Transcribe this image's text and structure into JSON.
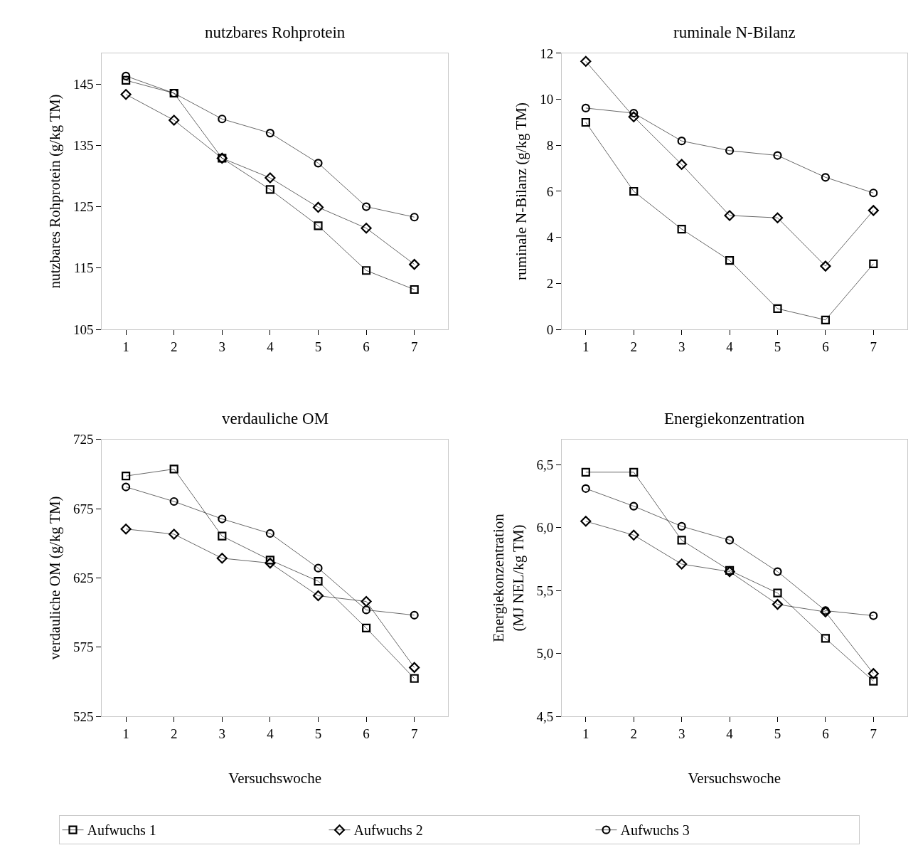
{
  "chart_data": [
    {
      "type": "line",
      "title": "nutzbares Rohprotein",
      "ylabel": "nutzbares Rohprotein (g/kg TM)",
      "categories": [
        "1",
        "2",
        "3",
        "4",
        "5",
        "6",
        "7"
      ],
      "ylim": [
        105,
        150
      ],
      "yticks": [
        105,
        115,
        125,
        135,
        145
      ],
      "grid": false,
      "legend": "bottom",
      "series": [
        {
          "name": "Aufwuchs 1",
          "color": "#000000",
          "marker": "square",
          "values": [
            145.6,
            143.5,
            132.9,
            127.8,
            121.9,
            114.6,
            111.5
          ]
        },
        {
          "name": "Aufwuchs 2",
          "color": "#000000",
          "marker": "diamond",
          "values": [
            143.3,
            139.1,
            132.9,
            129.7,
            124.9,
            121.5,
            115.6
          ]
        },
        {
          "name": "Aufwuchs 3",
          "color": "#000000",
          "marker": "circle",
          "values": [
            146.3,
            143.5,
            139.3,
            137.0,
            132.1,
            125.0,
            123.3
          ]
        }
      ]
    },
    {
      "type": "line",
      "title": "ruminale N-Bilanz",
      "ylabel": "ruminale N-Bilanz (g/kg TM)",
      "categories": [
        "1",
        "2",
        "3",
        "4",
        "5",
        "6",
        "7"
      ],
      "ylim": [
        0,
        12
      ],
      "yticks": [
        0,
        2,
        4,
        6,
        8,
        10,
        12
      ],
      "grid": false,
      "series": [
        {
          "color": "#000000",
          "marker": "square",
          "values": [
            9.0,
            6.0,
            4.36,
            3.0,
            0.9,
            0.41,
            2.85
          ]
        },
        {
          "color": "#000000",
          "marker": "diamond",
          "values": [
            11.65,
            9.24,
            7.17,
            4.95,
            4.85,
            2.75,
            5.17
          ]
        },
        {
          "color": "#000000",
          "marker": "circle",
          "values": [
            9.62,
            9.4,
            8.19,
            7.77,
            7.56,
            6.61,
            5.93
          ]
        }
      ]
    },
    {
      "type": "line",
      "title": "verdauliche OM",
      "ylabel": "verdauliche OM (g/kg TM)",
      "xlabel": "Versuchswoche",
      "categories": [
        "1",
        "2",
        "3",
        "4",
        "5",
        "6",
        "7"
      ],
      "ylim": [
        525,
        725
      ],
      "yticks": [
        525,
        575,
        625,
        675,
        725
      ],
      "grid": false,
      "series": [
        {
          "color": "#000000",
          "marker": "square",
          "values": [
            698.6,
            703.6,
            655.2,
            637.9,
            622.6,
            588.8,
            552.4
          ]
        },
        {
          "color": "#000000",
          "marker": "diamond",
          "values": [
            660.3,
            656.6,
            639.2,
            635.7,
            612.1,
            608.0,
            560.3
          ]
        },
        {
          "color": "#000000",
          "marker": "circle",
          "values": [
            690.7,
            680.2,
            667.6,
            657.1,
            632.1,
            601.9,
            598.1
          ]
        }
      ]
    },
    {
      "type": "line",
      "title": "Energiekonzentration",
      "ylabel": "Energiekonzentration\n(MJ NEL/kg TM)",
      "xlabel": "Versuchswoche",
      "categories": [
        "1",
        "2",
        "3",
        "4",
        "5",
        "6",
        "7"
      ],
      "ylim": [
        4.5,
        6.7
      ],
      "yticks": [
        {
          "value": 4.5,
          "label": "4,5"
        },
        {
          "value": 5.0,
          "label": "5,0"
        },
        {
          "value": 5.5,
          "label": "5,5"
        },
        {
          "value": 6.0,
          "label": "6,0"
        },
        {
          "value": 6.5,
          "label": "6,5"
        }
      ],
      "grid": false,
      "series": [
        {
          "color": "#000000",
          "marker": "square",
          "values": [
            6.44,
            6.44,
            5.9,
            5.66,
            5.48,
            5.12,
            4.78
          ]
        },
        {
          "color": "#000000",
          "marker": "diamond",
          "values": [
            6.05,
            5.94,
            5.71,
            5.65,
            5.39,
            5.33,
            4.84
          ]
        },
        {
          "color": "#000000",
          "marker": "circle",
          "values": [
            6.31,
            6.17,
            6.01,
            5.9,
            5.65,
            5.34,
            5.3
          ]
        }
      ]
    }
  ]
}
